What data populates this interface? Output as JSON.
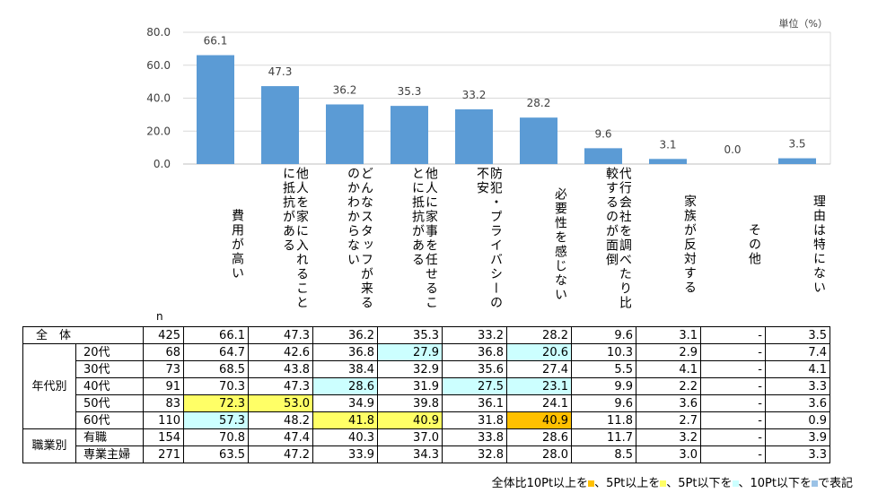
{
  "unit_label": "単位（%）",
  "n_label": "n",
  "chart_data": {
    "type": "bar",
    "categories": [
      "費用が高い",
      "他人を家に入れることに抵抗がある",
      "どんなスタッフが来るのかわからない",
      "他人に家事を任せることに抵抗がある",
      "防犯・プライバシーの不安",
      "必要性を感じない",
      "代行会社を調べたり比較するのが面倒",
      "家族が反対する",
      "その他",
      "理由は特にない"
    ],
    "values": [
      66.1,
      47.3,
      36.2,
      35.3,
      33.2,
      28.2,
      9.6,
      3.1,
      0.0,
      3.5
    ],
    "value_labels": [
      "66.1",
      "47.3",
      "36.2",
      "35.3",
      "33.2",
      "28.2",
      "9.6",
      "3.1",
      "0.0",
      "3.5"
    ],
    "yticks": [
      "0.0",
      "20.0",
      "40.0",
      "60.0",
      "80.0"
    ],
    "ylim": [
      0,
      80
    ],
    "bar_color": "#5b9bd5"
  },
  "table": {
    "total": {
      "label": "全　体",
      "n": "425",
      "values": [
        "66.1",
        "47.3",
        "36.2",
        "35.3",
        "33.2",
        "28.2",
        "9.6",
        "3.1",
        "-",
        "3.5"
      ]
    },
    "groups": [
      {
        "label": "年代別",
        "rows": [
          {
            "label": "20代",
            "n": "68",
            "values": [
              "64.7",
              "42.6",
              "36.8",
              "27.9",
              "36.8",
              "20.6",
              "10.3",
              "2.9",
              "-",
              "7.4"
            ],
            "hl": [
              "",
              "",
              "",
              "cyan",
              "",
              "cyan",
              "",
              "",
              "",
              ""
            ]
          },
          {
            "label": "30代",
            "n": "73",
            "values": [
              "68.5",
              "43.8",
              "38.4",
              "32.9",
              "35.6",
              "27.4",
              "5.5",
              "4.1",
              "-",
              "4.1"
            ],
            "hl": [
              "",
              "",
              "",
              "",
              "",
              "",
              "",
              "",
              "",
              ""
            ]
          },
          {
            "label": "40代",
            "n": "91",
            "values": [
              "70.3",
              "47.3",
              "28.6",
              "31.9",
              "27.5",
              "23.1",
              "9.9",
              "2.2",
              "-",
              "3.3"
            ],
            "hl": [
              "",
              "",
              "cyan",
              "",
              "cyan",
              "cyan",
              "",
              "",
              "",
              ""
            ]
          },
          {
            "label": "50代",
            "n": "83",
            "values": [
              "72.3",
              "53.0",
              "34.9",
              "39.8",
              "36.1",
              "24.1",
              "9.6",
              "3.6",
              "-",
              "3.6"
            ],
            "hl": [
              "yellow",
              "yellow",
              "",
              "",
              "",
              "",
              "",
              "",
              "",
              ""
            ]
          },
          {
            "label": "60代",
            "n": "110",
            "values": [
              "57.3",
              "48.2",
              "41.8",
              "40.9",
              "31.8",
              "40.9",
              "11.8",
              "2.7",
              "-",
              "0.9"
            ],
            "hl": [
              "cyan",
              "",
              "yellow",
              "yellow",
              "",
              "orange",
              "",
              "",
              "",
              ""
            ]
          }
        ]
      },
      {
        "label": "職業別",
        "rows": [
          {
            "label": "有職",
            "n": "154",
            "values": [
              "70.8",
              "47.4",
              "40.3",
              "37.0",
              "33.8",
              "28.6",
              "11.7",
              "3.2",
              "-",
              "3.9"
            ],
            "hl": [
              "",
              "",
              "",
              "",
              "",
              "",
              "",
              "",
              "",
              ""
            ]
          },
          {
            "label": "専業主婦",
            "n": "271",
            "values": [
              "63.5",
              "47.2",
              "33.9",
              "34.3",
              "32.8",
              "28.0",
              "8.5",
              "3.0",
              "-",
              "3.3"
            ],
            "hl": [
              "",
              "",
              "",
              "",
              "",
              "",
              "",
              "",
              "",
              ""
            ]
          }
        ]
      }
    ]
  },
  "legend": {
    "t1": "全体比10Pt以上を",
    "t2": "、5Pt以上を",
    "t3": "、5Pt以下を",
    "t4": "、10Pt以下を",
    "t5": "で表記",
    "colors": {
      "orange": "#ffc000",
      "yellow": "#ffff66",
      "cyan": "#ccffff",
      "blue": "#9bc2e6"
    }
  }
}
